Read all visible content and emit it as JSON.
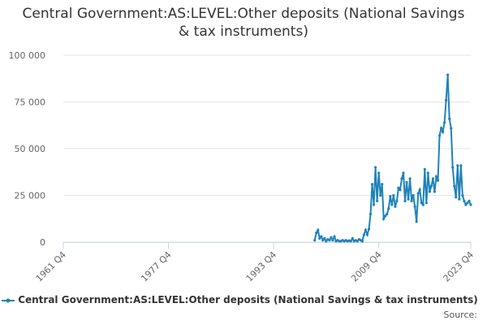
{
  "chart_data": {
    "type": "line",
    "title": "Central Government:AS:LEVEL:Other deposits (National Savings & tax instruments)",
    "source": "Source:",
    "xlim": [
      1961.75,
      2023.75
    ],
    "xticks": [
      {
        "value": 1961.75,
        "label": "1961 Q4"
      },
      {
        "value": 1977.75,
        "label": "1977 Q4"
      },
      {
        "value": 1993.75,
        "label": "1993 Q4"
      },
      {
        "value": 2009.75,
        "label": "2009 Q4"
      },
      {
        "value": 2023.75,
        "label": "2023 Q4"
      }
    ],
    "ylim": [
      0,
      100000
    ],
    "yticks": [
      0,
      {
        "value": 25000,
        "label": "25 000"
      },
      {
        "value": 50000,
        "label": "50 000"
      },
      {
        "value": 75000,
        "label": "75 000"
      },
      {
        "value": 100000,
        "label": "100 000"
      }
    ],
    "grid": true,
    "series": [
      {
        "name": "Central Government:AS:LEVEL:Other deposits (National Savings & tax instruments)",
        "color": "#1f83b9",
        "x": [
          2000,
          2000.25,
          2000.5,
          2000.75,
          2001,
          2001.25,
          2001.5,
          2001.75,
          2002,
          2002.25,
          2002.5,
          2002.75,
          2003,
          2003.25,
          2003.5,
          2003.75,
          2004,
          2004.25,
          2004.5,
          2004.75,
          2005,
          2005.25,
          2005.5,
          2005.75,
          2006,
          2006.25,
          2006.5,
          2006.75,
          2007,
          2007.25,
          2007.5,
          2007.75,
          2008,
          2008.25,
          2008.5,
          2008.75,
          2009,
          2009.25,
          2009.5,
          2009.75,
          2010,
          2010.25,
          2010.5,
          2010.75,
          2011,
          2011.25,
          2011.5,
          2011.75,
          2012,
          2012.25,
          2012.5,
          2012.75,
          2013,
          2013.25,
          2013.5,
          2013.75,
          2014,
          2014.25,
          2014.5,
          2014.75,
          2015,
          2015.25,
          2015.5,
          2015.75,
          2016,
          2016.25,
          2016.5,
          2016.75,
          2017,
          2017.25,
          2017.5,
          2017.75,
          2018,
          2018.25,
          2018.5,
          2018.75,
          2019,
          2019.25,
          2019.5,
          2019.75,
          2020,
          2020.25,
          2020.5,
          2020.75,
          2021,
          2021.25,
          2021.5,
          2021.75,
          2022,
          2022.25,
          2022.5,
          2022.75,
          2023,
          2023.25,
          2023.5,
          2023.75
        ],
        "values": [
          1000,
          5000,
          6500,
          2000,
          3000,
          1000,
          2000,
          500,
          1500,
          1000,
          2500,
          1000,
          3000,
          500,
          1000,
          500,
          500,
          1000,
          500,
          1000,
          500,
          800,
          500,
          2000,
          500,
          1000,
          500,
          1500,
          1000,
          500,
          4000,
          6500,
          4000,
          7000,
          15000,
          31000,
          20000,
          40000,
          22000,
          37000,
          25000,
          31000,
          12500,
          14000,
          15000,
          18000,
          24500,
          20000,
          25000,
          19000,
          22000,
          29000,
          28000,
          34000,
          37000,
          22000,
          32000,
          23000,
          34000,
          22000,
          25000,
          19000,
          11000,
          26000,
          28000,
          21000,
          20000,
          39000,
          21000,
          37000,
          27000,
          30000,
          34000,
          27000,
          35000,
          33000,
          57000,
          61000,
          59000,
          64000,
          76000,
          89500,
          66000,
          61000,
          40000,
          30000,
          24000,
          41000,
          23000,
          41000,
          25000,
          22000,
          20000,
          21000,
          22000,
          20000
        ]
      }
    ]
  }
}
